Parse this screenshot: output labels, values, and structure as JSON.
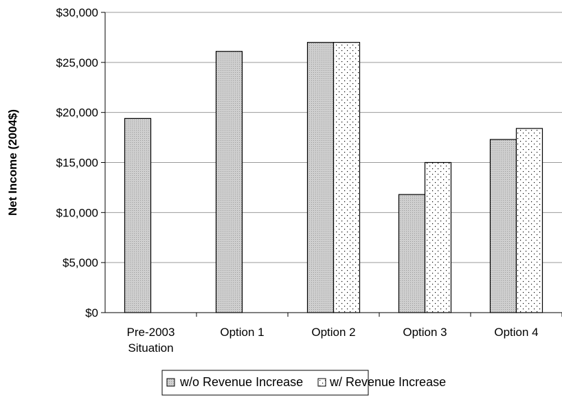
{
  "chart_data": {
    "type": "bar",
    "title": "",
    "xlabel": "",
    "ylabel": "Net Income (2004$)",
    "ylim": [
      0,
      30000
    ],
    "yticks": [
      0,
      5000,
      10000,
      15000,
      20000,
      25000,
      30000
    ],
    "ytick_labels": [
      "$0",
      "$5,000",
      "$10,000",
      "$15,000",
      "$20,000",
      "$25,000",
      "$30,000"
    ],
    "categories": [
      [
        "Pre-2003",
        "Situation"
      ],
      [
        "Option 1"
      ],
      [
        "Option 2"
      ],
      [
        "Option 3"
      ],
      [
        "Option 4"
      ]
    ],
    "series": [
      {
        "name": "w/o Revenue Increase",
        "values": [
          19400,
          26100,
          27000,
          11800,
          17300
        ],
        "fill": "#c9c9c9"
      },
      {
        "name": "w/ Revenue Increase",
        "values": [
          null,
          null,
          27000,
          15000,
          18400
        ],
        "fill": "dotted"
      }
    ],
    "grid": true,
    "legend": "bottom",
    "legend_text": "w/o Revenue Increase",
    "legend_text_2": "w/ Revenue Increase"
  }
}
